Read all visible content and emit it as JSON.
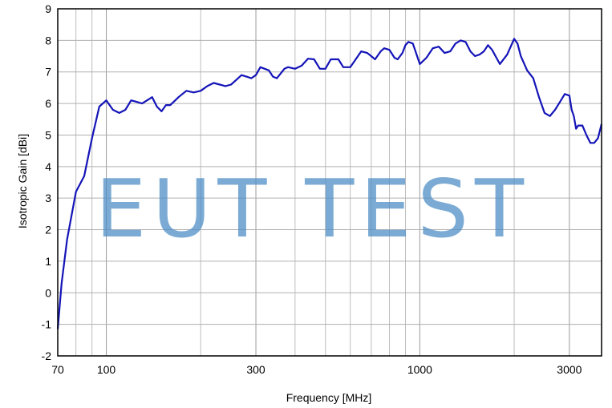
{
  "chart_data": {
    "type": "line",
    "title": "",
    "xlabel": "Frequency [MHz]",
    "ylabel": "Isotropic Gain [dBi]",
    "x_scale": "log",
    "xlim": [
      70,
      3800
    ],
    "ylim": [
      -2,
      9
    ],
    "grid": true,
    "x_ticks": [
      70,
      100,
      300,
      1000,
      3000
    ],
    "x_tick_labels": [
      "70",
      "100",
      "300",
      "1000",
      "3000"
    ],
    "y_ticks": [
      -2,
      -1,
      0,
      1,
      2,
      3,
      4,
      5,
      6,
      7,
      8,
      9
    ],
    "y_tick_labels": [
      "-2",
      "-1",
      "0",
      "1",
      "2",
      "3",
      "4",
      "5",
      "6",
      "7",
      "8",
      "9"
    ],
    "series_color": "#1414b8",
    "watermark": "EUT TEST",
    "series": [
      {
        "x": [
          70,
          72,
          75,
          80,
          85,
          90,
          95,
          100,
          105,
          110,
          115,
          120,
          125,
          130,
          140,
          145,
          150,
          155,
          160,
          170,
          180,
          190,
          200,
          210,
          220,
          230,
          240,
          250,
          260,
          270,
          280,
          290,
          300,
          310,
          320,
          330,
          340,
          350,
          370,
          380,
          400,
          420,
          440,
          460,
          480,
          500,
          520,
          550,
          570,
          600,
          620,
          650,
          680,
          700,
          720,
          750,
          770,
          800,
          830,
          850,
          880,
          900,
          920,
          950,
          1000,
          1050,
          1100,
          1150,
          1200,
          1250,
          1300,
          1350,
          1400,
          1450,
          1500,
          1550,
          1600,
          1650,
          1700,
          1800,
          1900,
          2000,
          2050,
          2100,
          2200,
          2300,
          2400,
          2500,
          2600,
          2700,
          2800,
          2900,
          3000,
          3050,
          3100,
          3150,
          3200,
          3300,
          3400,
          3500,
          3600,
          3700,
          3800
        ],
        "y": [
          -1.15,
          0.3,
          1.7,
          3.2,
          3.7,
          4.9,
          5.9,
          6.1,
          5.8,
          5.7,
          5.8,
          6.1,
          6.05,
          6.0,
          6.2,
          5.9,
          5.75,
          5.95,
          5.95,
          6.2,
          6.4,
          6.35,
          6.4,
          6.55,
          6.65,
          6.6,
          6.55,
          6.6,
          6.75,
          6.9,
          6.85,
          6.8,
          6.9,
          7.15,
          7.1,
          7.05,
          6.85,
          6.8,
          7.1,
          7.15,
          7.1,
          7.2,
          7.42,
          7.4,
          7.1,
          7.1,
          7.4,
          7.4,
          7.15,
          7.15,
          7.35,
          7.65,
          7.6,
          7.5,
          7.4,
          7.65,
          7.75,
          7.7,
          7.45,
          7.4,
          7.6,
          7.85,
          7.95,
          7.9,
          7.25,
          7.45,
          7.75,
          7.8,
          7.6,
          7.65,
          7.9,
          8.0,
          7.95,
          7.65,
          7.5,
          7.55,
          7.65,
          7.85,
          7.7,
          7.25,
          7.55,
          8.05,
          7.9,
          7.5,
          7.05,
          6.8,
          6.2,
          5.7,
          5.6,
          5.8,
          6.05,
          6.3,
          6.25,
          5.8,
          5.6,
          5.2,
          5.3,
          5.3,
          5.0,
          4.75,
          4.75,
          4.9,
          5.35
        ]
      }
    ]
  }
}
